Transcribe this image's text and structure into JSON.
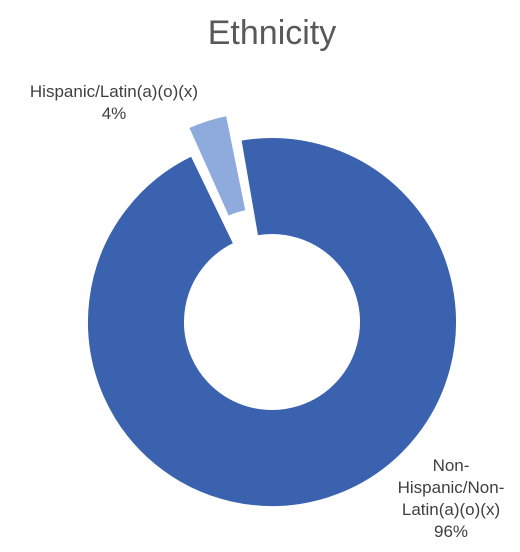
{
  "chart_data": {
    "type": "pie",
    "variant": "doughnut",
    "title": "Ethnicity",
    "series": [
      {
        "name": "Hispanic/Latin(a)(o)(x)",
        "value": 4,
        "value_label": "4%",
        "color": "#8faadc",
        "exploded": true
      },
      {
        "name": "Non-Hispanic/Non-Latin(a)(o)(x)",
        "label_lines": [
          "Non-",
          "Hispanic/Non-",
          "Latin(a)(o)(x)"
        ],
        "value": 96,
        "value_label": "96%",
        "color": "#3b62ae",
        "exploded": false
      }
    ],
    "legend": "none"
  }
}
